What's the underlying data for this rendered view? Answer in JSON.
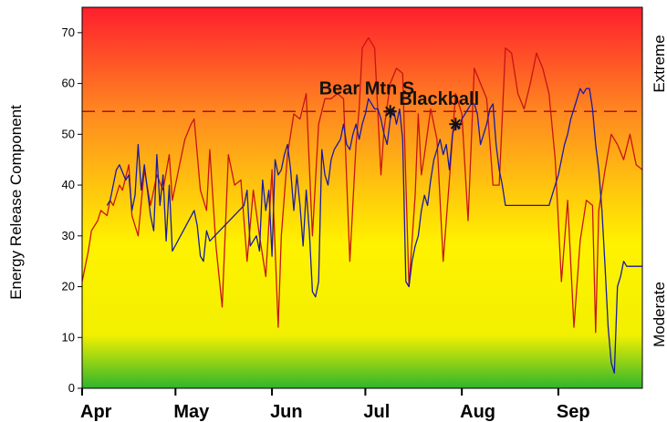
{
  "chart_data": {
    "type": "line",
    "title": "",
    "ylabel": "Energy Release Component",
    "xlabel": "",
    "ylim": [
      0,
      75
    ],
    "yticks": [
      0,
      10,
      20,
      30,
      40,
      50,
      60,
      70
    ],
    "months": [
      {
        "label": "Apr",
        "day": 0
      },
      {
        "label": "May",
        "day": 30
      },
      {
        "label": "Jun",
        "day": 61
      },
      {
        "label": "Jul",
        "day": 91
      },
      {
        "label": "Aug",
        "day": 122
      },
      {
        "label": "Sep",
        "day": 153
      }
    ],
    "xlim": [
      0,
      180
    ],
    "side_labels": {
      "top": "Extreme",
      "bottom": "Moderate"
    },
    "threshold": {
      "value": 54.5,
      "color": "#a01818"
    },
    "background_gradient": [
      "#ff1e2e",
      "#ff8a20",
      "#fff200",
      "#f2f000",
      "#2fb52c"
    ],
    "series": [
      {
        "color": "#c81414",
        "x": [
          0,
          2,
          3,
          5,
          6,
          8,
          9,
          10,
          12,
          13,
          15,
          16,
          18,
          20,
          22,
          24,
          26,
          28,
          29,
          31,
          33,
          35,
          36,
          38,
          40,
          41,
          43,
          45,
          47,
          49,
          51,
          53,
          55,
          57,
          59,
          61,
          63,
          64,
          65,
          66,
          68,
          70,
          72,
          74,
          76,
          78,
          80,
          82,
          84,
          86,
          88,
          89,
          90,
          92,
          94,
          96,
          97,
          99,
          101,
          103,
          105,
          107,
          108,
          109,
          110,
          112,
          114,
          116,
          118,
          120,
          122,
          124,
          126,
          128,
          130,
          132,
          134,
          136,
          138,
          140,
          142,
          144,
          146,
          148,
          150,
          152,
          154,
          156,
          158,
          160,
          162,
          164,
          165,
          166,
          168,
          170,
          172,
          174,
          176,
          178,
          180
        ],
        "y": [
          21,
          27,
          31,
          33,
          35,
          34,
          37,
          36,
          40,
          39,
          44,
          34,
          30,
          43,
          36,
          42,
          39,
          46,
          37,
          43,
          49,
          52,
          53,
          39,
          35,
          47,
          28,
          16,
          46,
          40,
          41,
          25,
          39,
          30,
          22,
          43,
          12,
          30,
          38,
          46,
          54,
          53,
          58,
          30,
          52,
          57,
          57,
          58,
          57,
          25,
          48,
          55,
          67,
          69,
          67,
          42,
          51,
          60,
          63,
          62,
          20,
          38,
          54,
          42,
          46,
          55,
          49,
          25,
          41,
          58,
          54,
          33,
          63,
          60,
          57,
          40,
          40,
          67,
          66,
          58,
          55,
          60,
          66,
          63,
          58,
          45,
          21,
          37,
          12,
          29,
          37,
          36,
          11,
          35,
          43,
          50,
          48,
          45,
          50,
          44,
          43
        ]
      },
      {
        "color": "#1a1aa0",
        "x": [
          8,
          9,
          11,
          12,
          14,
          15,
          16,
          17,
          18,
          19,
          20,
          22,
          23,
          24,
          25,
          26,
          27,
          28,
          29,
          36,
          37,
          38,
          39,
          40,
          41,
          52,
          53,
          54,
          55,
          56,
          57,
          58,
          59,
          60,
          61,
          62,
          63,
          64,
          65,
          66,
          67,
          68,
          69,
          70,
          71,
          72,
          73,
          74,
          75,
          76,
          77,
          78,
          79,
          80,
          81,
          82,
          83,
          84,
          85,
          86,
          87,
          88,
          89,
          90,
          91,
          92,
          93,
          94,
          95,
          96,
          97,
          98,
          99,
          100,
          101,
          102,
          103,
          104,
          105,
          106,
          107,
          108,
          109,
          110,
          111,
          112,
          113,
          114,
          115,
          116,
          117,
          118,
          119,
          120,
          121,
          122,
          123,
          124,
          125,
          126,
          127,
          128,
          129,
          130,
          131,
          132,
          133,
          134,
          135,
          136,
          150,
          151,
          152,
          153,
          154,
          155,
          156,
          157,
          158,
          159,
          160,
          161,
          162,
          163,
          164,
          165,
          166,
          167,
          168,
          169,
          170,
          171,
          172,
          173,
          174,
          175,
          176,
          177,
          178,
          179,
          180
        ],
        "y": [
          36,
          37,
          43,
          44,
          41,
          42,
          35,
          38,
          48,
          39,
          44,
          34,
          31,
          46,
          36,
          42,
          29,
          40,
          27,
          35,
          32,
          26,
          25,
          31,
          29,
          36,
          39,
          28,
          29,
          30,
          27,
          41,
          35,
          39,
          26,
          45,
          42,
          43,
          46,
          48,
          43,
          35,
          42,
          36,
          28,
          39,
          31,
          19,
          18,
          21,
          47,
          42,
          40,
          45,
          47,
          48,
          49,
          52,
          48,
          47,
          50,
          52,
          49,
          52,
          54,
          57,
          56,
          55,
          55,
          53,
          50,
          48,
          53,
          55,
          52,
          55,
          49,
          21,
          20,
          25,
          28,
          30,
          35,
          38,
          36,
          41,
          45,
          47,
          49,
          46,
          48,
          43,
          50,
          52,
          51,
          53,
          54,
          55,
          56,
          56,
          54,
          48,
          50,
          52,
          55,
          56,
          48,
          43,
          40,
          36,
          36,
          38,
          40,
          42,
          45,
          48,
          50,
          53,
          55,
          57,
          59,
          58,
          59,
          59,
          55,
          48,
          43,
          35,
          24,
          12,
          5,
          3,
          20,
          22,
          25,
          24,
          24,
          24,
          24,
          24,
          24
        ]
      }
    ],
    "markers": [
      {
        "label": "Bear Mtn S",
        "x": 99,
        "y": 54.5
      },
      {
        "label": "Blackball",
        "x": 120,
        "y": 52
      }
    ]
  }
}
